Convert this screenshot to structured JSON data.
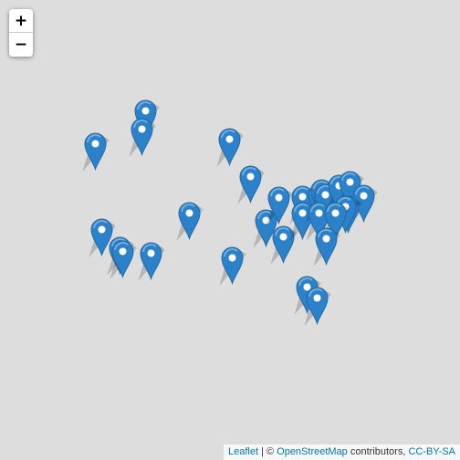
{
  "zoom": {
    "in_label": "+",
    "out_label": "−"
  },
  "attribution": {
    "leaflet": "Leaflet",
    "sep": " | © ",
    "osm": "OpenStreetMap",
    "contributors": " contributors, ",
    "license": "CC-BY-SA"
  },
  "colors": {
    "marker": "#2b82cb",
    "marker_stroke": "#2568a2",
    "background": "#dddddd"
  },
  "marker_icon": "map-pin-icon",
  "marker_count": 34
}
